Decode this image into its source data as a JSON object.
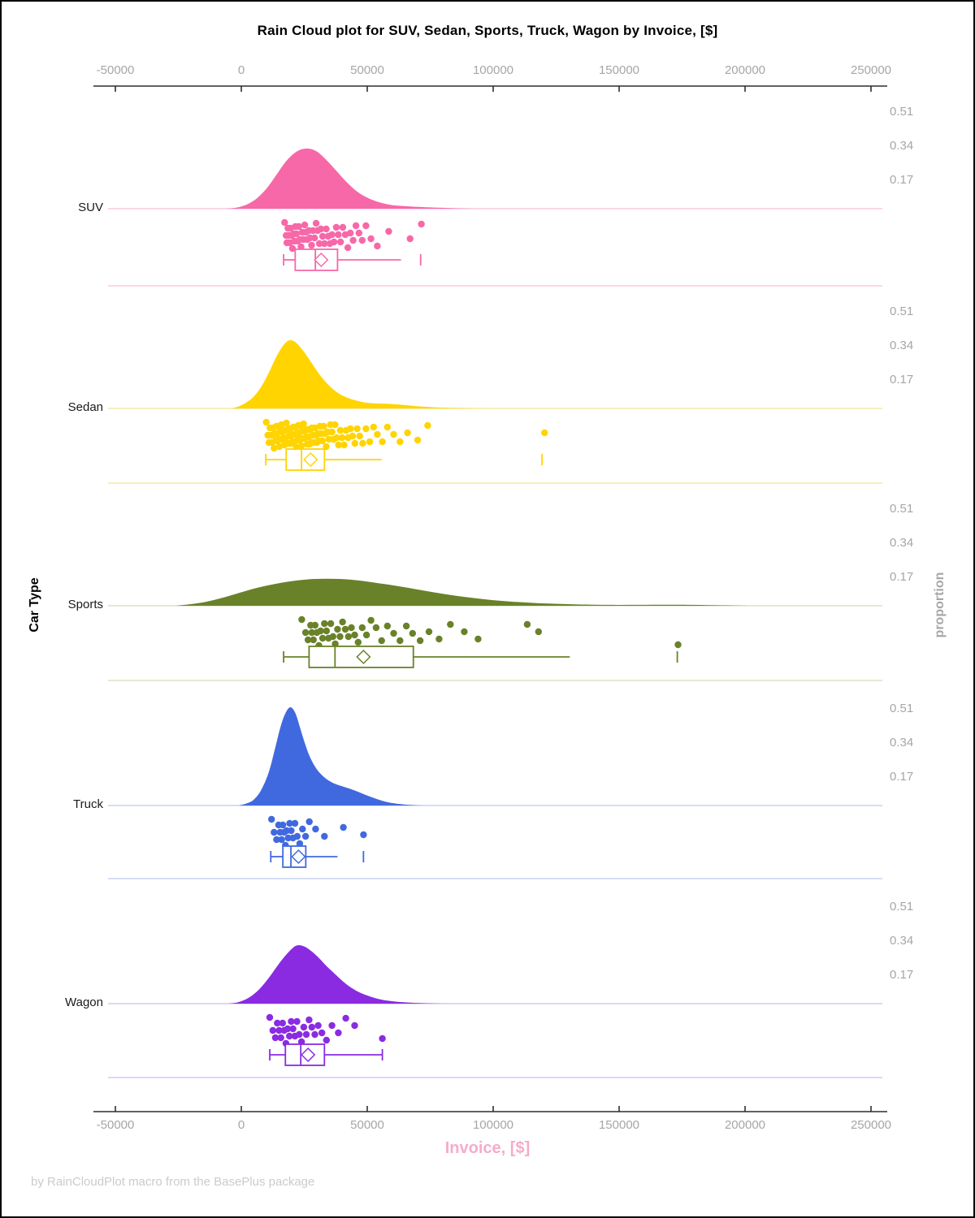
{
  "page": {
    "title": "Rain Cloud plot for SUV, Sedan, Sports, Truck, Wagon by Invoice, [$]",
    "footer": "by RainCloudPlot macro from the BasePlus package"
  },
  "chart_data": {
    "type": "raincloud (half-violin density + rain strip points + box plot per category)",
    "title": "Rain Cloud plot for SUV, Sedan, Sports, Truck, Wagon by Invoice, [$]",
    "xlabel": "Invoice, [$]",
    "ylabel": "Car Type",
    "y2label": "proportion",
    "grid": "off",
    "legend": "none",
    "x_range": [
      -58000,
      255000
    ],
    "x_ticks": [
      -50000,
      0,
      50000,
      100000,
      150000,
      200000,
      250000
    ],
    "x_tick_labels": [
      "-50000",
      "0",
      "50000",
      "100000",
      "150000",
      "200000",
      "250000"
    ],
    "proportion_tick_values": [
      0.51,
      0.34,
      0.17
    ],
    "proportion_tick_labels": [
      "0.51",
      "0.34",
      "0.17"
    ],
    "axis_colors": {
      "axis_line": "#2E2E2E",
      "tick_text": "#A6A6A6",
      "xlabel_text": "#F5ACC9",
      "y2label_text": "#A6A6A6",
      "footer_text": "#CBCBCB"
    },
    "categories": [
      {
        "label": "SUV",
        "color": "#F768A8",
        "pale_color": "#FBC9DF",
        "box": {
          "whisker_low": 16800,
          "q1": 21400,
          "median": 29400,
          "mean": 31700,
          "q3": 38200,
          "whisker_high": 63400,
          "outliers": [
            71200
          ],
          "right_cap": false
        },
        "density": [
          [
            -6000,
            0
          ],
          [
            -2000,
            0.005
          ],
          [
            2000,
            0.02
          ],
          [
            6000,
            0.05
          ],
          [
            10000,
            0.1
          ],
          [
            14000,
            0.17
          ],
          [
            18000,
            0.24
          ],
          [
            22000,
            0.285
          ],
          [
            26000,
            0.3
          ],
          [
            30000,
            0.285
          ],
          [
            34000,
            0.24
          ],
          [
            38000,
            0.185
          ],
          [
            42000,
            0.13
          ],
          [
            46000,
            0.085
          ],
          [
            50000,
            0.055
          ],
          [
            54000,
            0.035
          ],
          [
            58000,
            0.022
          ],
          [
            62000,
            0.015
          ],
          [
            67000,
            0.011
          ],
          [
            72000,
            0.008
          ],
          [
            78000,
            0.005
          ],
          [
            85000,
            0.002
          ],
          [
            92000,
            0
          ]
        ],
        "points": [
          17200,
          17800,
          18100,
          18500,
          18900,
          19200,
          19600,
          20000,
          20300,
          20700,
          21100,
          21500,
          21900,
          22400,
          22800,
          23300,
          23700,
          24200,
          24700,
          25200,
          25700,
          26200,
          26800,
          27300,
          27900,
          28500,
          29100,
          29700,
          30300,
          31000,
          31600,
          32300,
          33000,
          33700,
          34500,
          35200,
          36000,
          36800,
          37700,
          38500,
          39400,
          40300,
          41300,
          42300,
          43300,
          44400,
          45500,
          46700,
          48000,
          49500,
          51500,
          54000,
          58500,
          67000,
          71500
        ]
      },
      {
        "label": "Sedan",
        "color": "#FFD400",
        "pale_color": "#F7E9A4",
        "box": {
          "whisker_low": 9700,
          "q1": 17800,
          "median": 23900,
          "mean": 27500,
          "q3": 33000,
          "whisker_high": 55700,
          "outliers": [
            119400
          ],
          "right_cap": false
        },
        "density": [
          [
            -4000,
            0
          ],
          [
            -1000,
            0.01
          ],
          [
            2000,
            0.03
          ],
          [
            5000,
            0.06
          ],
          [
            8000,
            0.11
          ],
          [
            11000,
            0.18
          ],
          [
            14000,
            0.26
          ],
          [
            17000,
            0.32
          ],
          [
            19500,
            0.34
          ],
          [
            22000,
            0.325
          ],
          [
            25000,
            0.28
          ],
          [
            28000,
            0.225
          ],
          [
            31000,
            0.17
          ],
          [
            34000,
            0.125
          ],
          [
            37000,
            0.09
          ],
          [
            40000,
            0.065
          ],
          [
            44000,
            0.045
          ],
          [
            48000,
            0.032
          ],
          [
            52000,
            0.026
          ],
          [
            56000,
            0.024
          ],
          [
            60000,
            0.022
          ],
          [
            64000,
            0.018
          ],
          [
            68000,
            0.013
          ],
          [
            72000,
            0.009
          ],
          [
            76000,
            0.006
          ],
          [
            82000,
            0.003
          ],
          [
            90000,
            0.001
          ],
          [
            98000,
            0
          ]
        ],
        "points": [
          9900,
          10500,
          11000,
          11400,
          11800,
          12100,
          12400,
          12700,
          13000,
          13300,
          13600,
          13900,
          14100,
          14400,
          14600,
          14900,
          15100,
          15400,
          15600,
          15900,
          16100,
          16400,
          16600,
          16900,
          17100,
          17400,
          17600,
          17900,
          18100,
          18400,
          18600,
          18900,
          19100,
          19400,
          19600,
          19900,
          20100,
          20400,
          20600,
          20900,
          21100,
          21400,
          21600,
          21900,
          22100,
          22400,
          22600,
          22900,
          23100,
          23400,
          23600,
          23900,
          24100,
          24400,
          24700,
          25000,
          25300,
          25600,
          25900,
          26200,
          26500,
          26800,
          27100,
          27400,
          27700,
          28000,
          28400,
          28800,
          29200,
          29600,
          30000,
          30400,
          30800,
          31200,
          31700,
          32200,
          32700,
          33200,
          33700,
          34200,
          34800,
          35400,
          36000,
          36600,
          37200,
          37900,
          38600,
          39300,
          40000,
          40800,
          41600,
          42400,
          43300,
          44200,
          45100,
          46000,
          47000,
          48200,
          49500,
          51000,
          52500,
          54000,
          56000,
          58000,
          60500,
          63000,
          66000,
          70000,
          74000,
          120400
        ]
      },
      {
        "label": "Sports",
        "color": "#698229",
        "pale_color": "#DCE3C4",
        "box": {
          "whisker_low": 16800,
          "q1": 26900,
          "median": 37200,
          "mean": 48500,
          "q3": 68300,
          "whisker_high": 130400,
          "outliers": [
            173100
          ],
          "right_cap": false
        },
        "density": [
          [
            -26000,
            0
          ],
          [
            -20000,
            0.008
          ],
          [
            -14000,
            0.02
          ],
          [
            -8000,
            0.038
          ],
          [
            -2000,
            0.06
          ],
          [
            4000,
            0.082
          ],
          [
            10000,
            0.1
          ],
          [
            16000,
            0.115
          ],
          [
            22000,
            0.126
          ],
          [
            28000,
            0.133
          ],
          [
            34000,
            0.135
          ],
          [
            40000,
            0.133
          ],
          [
            46000,
            0.127
          ],
          [
            52000,
            0.117
          ],
          [
            58000,
            0.106
          ],
          [
            64000,
            0.094
          ],
          [
            70000,
            0.081
          ],
          [
            76000,
            0.068
          ],
          [
            82000,
            0.056
          ],
          [
            88000,
            0.045
          ],
          [
            94000,
            0.036
          ],
          [
            100000,
            0.028
          ],
          [
            108000,
            0.02
          ],
          [
            116000,
            0.014
          ],
          [
            124000,
            0.01
          ],
          [
            132000,
            0.007
          ],
          [
            140000,
            0.005
          ],
          [
            150000,
            0.004
          ],
          [
            160000,
            0.0045
          ],
          [
            170000,
            0.005
          ],
          [
            178000,
            0.0045
          ],
          [
            186000,
            0.003
          ],
          [
            194000,
            0.0015
          ],
          [
            202000,
            0
          ]
        ],
        "points": [
          24000,
          25500,
          26500,
          27500,
          28000,
          28600,
          29300,
          30000,
          30800,
          31500,
          32300,
          33000,
          33800,
          34600,
          35500,
          36400,
          37300,
          38200,
          39200,
          40200,
          41300,
          42500,
          43700,
          45000,
          46400,
          48000,
          49700,
          51500,
          53500,
          55700,
          58000,
          60500,
          63000,
          65500,
          68000,
          71000,
          74500,
          78500,
          83000,
          88500,
          94000,
          113500,
          118000,
          173400
        ]
      },
      {
        "label": "Truck",
        "color": "#4169DF",
        "pale_color": "#C5D3F0",
        "box": {
          "whisker_low": 11700,
          "q1": 16500,
          "median": 19700,
          "mean": 22700,
          "q3": 25600,
          "whisker_high": 38200,
          "outliers": [
            48500
          ],
          "right_cap": false
        },
        "density": [
          [
            -1000,
            0
          ],
          [
            2000,
            0.01
          ],
          [
            5000,
            0.03
          ],
          [
            8000,
            0.08
          ],
          [
            11000,
            0.17
          ],
          [
            13500,
            0.29
          ],
          [
            15500,
            0.39
          ],
          [
            17500,
            0.46
          ],
          [
            19500,
            0.49
          ],
          [
            21500,
            0.46
          ],
          [
            23500,
            0.38
          ],
          [
            25500,
            0.3
          ],
          [
            27500,
            0.235
          ],
          [
            30000,
            0.18
          ],
          [
            33000,
            0.14
          ],
          [
            36000,
            0.115
          ],
          [
            39000,
            0.1
          ],
          [
            42000,
            0.088
          ],
          [
            45000,
            0.075
          ],
          [
            48000,
            0.06
          ],
          [
            51000,
            0.045
          ],
          [
            54000,
            0.031
          ],
          [
            57000,
            0.02
          ],
          [
            60000,
            0.012
          ],
          [
            64000,
            0.006
          ],
          [
            68000,
            0.002
          ],
          [
            72000,
            0
          ]
        ],
        "points": [
          12000,
          13000,
          14000,
          14800,
          15400,
          16000,
          16500,
          17000,
          17500,
          18000,
          18600,
          19200,
          19800,
          20500,
          21300,
          22200,
          23200,
          24300,
          25500,
          27000,
          29500,
          33000,
          40500,
          48500
        ]
      },
      {
        "label": "Wagon",
        "color": "#8A2BE2",
        "pale_color": "#DCC6F0",
        "box": {
          "whisker_low": 11300,
          "q1": 17500,
          "median": 23600,
          "mean": 26500,
          "q3": 33000,
          "whisker_high": 56000,
          "outliers": [],
          "right_cap": true
        },
        "density": [
          [
            -5000,
            0
          ],
          [
            -1000,
            0.008
          ],
          [
            3000,
            0.03
          ],
          [
            7000,
            0.07
          ],
          [
            11000,
            0.13
          ],
          [
            15000,
            0.2
          ],
          [
            19000,
            0.26
          ],
          [
            22000,
            0.29
          ],
          [
            25000,
            0.285
          ],
          [
            28000,
            0.26
          ],
          [
            31000,
            0.225
          ],
          [
            34000,
            0.185
          ],
          [
            37000,
            0.15
          ],
          [
            40000,
            0.115
          ],
          [
            43000,
            0.085
          ],
          [
            46000,
            0.062
          ],
          [
            49000,
            0.045
          ],
          [
            52000,
            0.032
          ],
          [
            55000,
            0.022
          ],
          [
            58000,
            0.015
          ],
          [
            62000,
            0.009
          ],
          [
            67000,
            0.005
          ],
          [
            73000,
            0.002
          ],
          [
            80000,
            0
          ]
        ],
        "points": [
          11300,
          12500,
          13500,
          14300,
          15000,
          15700,
          16400,
          17000,
          17700,
          18400,
          19100,
          19800,
          20500,
          21300,
          22100,
          23000,
          23900,
          24800,
          25800,
          26900,
          28000,
          29200,
          30500,
          32000,
          33800,
          36000,
          38500,
          41500,
          45000,
          56000
        ]
      }
    ]
  }
}
